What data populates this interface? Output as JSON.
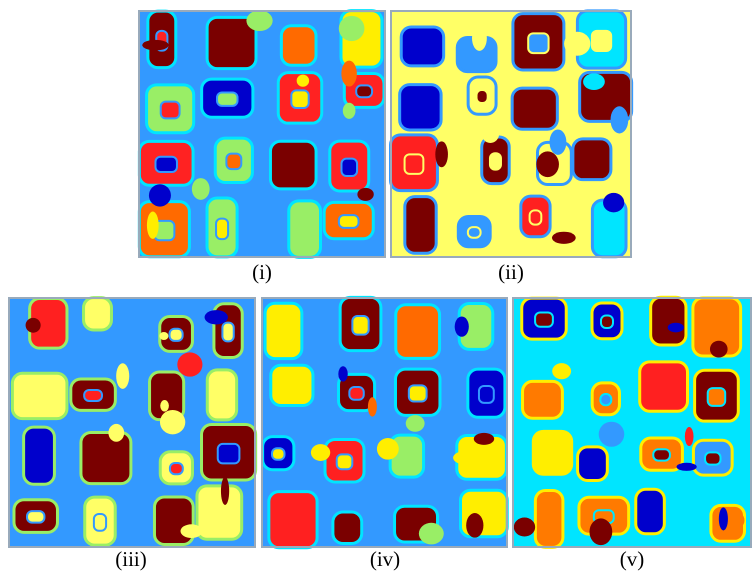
{
  "figure": {
    "panels": [
      {
        "caption": "(i)"
      },
      {
        "caption": "(ii)"
      },
      {
        "caption": "(iii)"
      },
      {
        "caption": "(iv)"
      },
      {
        "caption": "(v)"
      }
    ]
  }
}
